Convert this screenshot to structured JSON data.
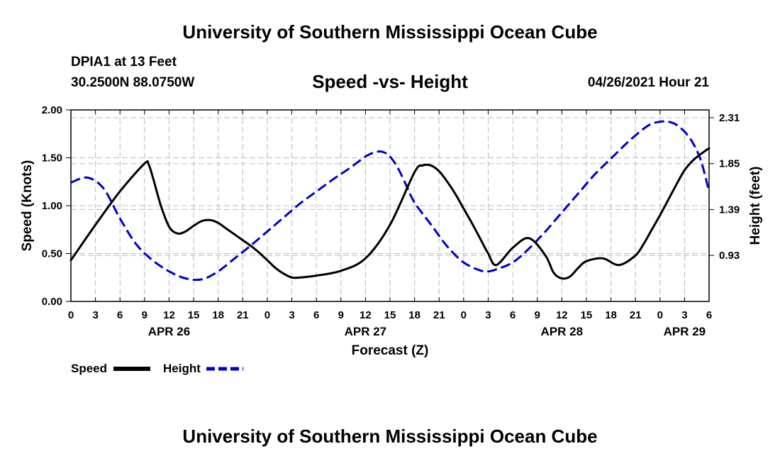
{
  "header": {
    "title": "University of Southern Mississippi Ocean Cube",
    "station": "DPIA1 at 13 Feet",
    "coords": "30.2500N  88.0750W",
    "datetime": "04/26/2021 Hour 21"
  },
  "footer": {
    "title": "University of Southern Mississippi Ocean Cube"
  },
  "chart_data": {
    "type": "line",
    "title": "Speed -vs- Height",
    "xlabel": "Forecast (Z)",
    "ylabel": "Speed (Knots)",
    "y2label": "Height (feet)",
    "x_unit": "hours since APR 26 00Z",
    "xlim": [
      0,
      78
    ],
    "ylim": [
      0,
      2.0
    ],
    "y2lim": [
      0.469,
      2.388
    ],
    "x_ticks": [
      0,
      3,
      6,
      9,
      12,
      15,
      18,
      21,
      24,
      27,
      30,
      33,
      36,
      39,
      42,
      45,
      48,
      51,
      54,
      57,
      60,
      63,
      66,
      69,
      72,
      75,
      78
    ],
    "x_tick_labels": [
      "0",
      "3",
      "6",
      "9",
      "12",
      "15",
      "18",
      "21",
      "0",
      "3",
      "6",
      "9",
      "12",
      "15",
      "18",
      "21",
      "0",
      "3",
      "6",
      "9",
      "12",
      "15",
      "18",
      "21",
      "0",
      "3",
      "6"
    ],
    "date_labels": [
      {
        "x": 12,
        "label": "APR 26"
      },
      {
        "x": 36,
        "label": "APR 27"
      },
      {
        "x": 60,
        "label": "APR 28"
      },
      {
        "x": 75,
        "label": "APR 29"
      }
    ],
    "y_ticks": [
      0.0,
      0.5,
      1.0,
      1.5,
      2.0
    ],
    "y_tick_labels": [
      "0.00",
      "0.50",
      "1.00",
      "1.50",
      "2.00"
    ],
    "y2_ticks": [
      0.93,
      1.39,
      1.85,
      2.31
    ],
    "y2_tick_labels": [
      "0.93",
      "1.39",
      "1.85",
      "2.31"
    ],
    "grid": true,
    "legend_position": "bottom-left",
    "series": [
      {
        "name": "Speed",
        "axis": "left",
        "color": "#000000",
        "dash": "solid",
        "x": [
          0,
          3,
          6,
          9,
          9.5,
          10,
          11,
          12,
          13,
          14,
          15,
          16,
          17,
          18,
          19,
          20,
          21,
          22,
          23,
          24,
          25,
          26,
          27,
          28,
          30,
          33,
          36,
          39,
          42,
          43,
          44,
          45,
          46,
          47,
          48,
          49,
          50,
          51,
          52,
          54,
          56,
          58,
          59,
          60,
          61,
          62,
          63,
          65,
          67,
          69,
          70,
          71,
          72,
          73,
          74,
          75,
          76,
          77,
          78
        ],
        "values": [
          0.43,
          0.8,
          1.15,
          1.44,
          1.43,
          1.3,
          1.0,
          0.78,
          0.71,
          0.73,
          0.79,
          0.84,
          0.85,
          0.82,
          0.76,
          0.7,
          0.64,
          0.58,
          0.51,
          0.43,
          0.35,
          0.29,
          0.25,
          0.25,
          0.27,
          0.32,
          0.45,
          0.8,
          1.35,
          1.42,
          1.42,
          1.36,
          1.25,
          1.12,
          0.97,
          0.82,
          0.66,
          0.5,
          0.38,
          0.56,
          0.66,
          0.48,
          0.3,
          0.24,
          0.26,
          0.35,
          0.42,
          0.45,
          0.38,
          0.48,
          0.6,
          0.75,
          0.9,
          1.06,
          1.22,
          1.37,
          1.47,
          1.54,
          1.6
        ]
      },
      {
        "name": "Height",
        "axis": "right",
        "color": "#0000cc",
        "dash": "dashed",
        "x": [
          0,
          2,
          4,
          6,
          8,
          10,
          12,
          14,
          16,
          18,
          20,
          22,
          24,
          26,
          28,
          30,
          32,
          34,
          36,
          37,
          38,
          39,
          40,
          41,
          42,
          44,
          46,
          48,
          50,
          51,
          52,
          54,
          56,
          58,
          60,
          62,
          64,
          66,
          68,
          70,
          71,
          72,
          73,
          74,
          75,
          76,
          77,
          78
        ],
        "values": [
          1.66,
          1.71,
          1.6,
          1.3,
          1.04,
          0.88,
          0.77,
          0.7,
          0.69,
          0.77,
          0.9,
          1.03,
          1.17,
          1.31,
          1.45,
          1.57,
          1.69,
          1.8,
          1.92,
          1.96,
          1.97,
          1.92,
          1.8,
          1.63,
          1.46,
          1.24,
          1.02,
          0.86,
          0.78,
          0.77,
          0.79,
          0.86,
          1.0,
          1.17,
          1.36,
          1.55,
          1.74,
          1.9,
          2.06,
          2.2,
          2.25,
          2.27,
          2.27,
          2.24,
          2.17,
          2.06,
          1.88,
          1.57
        ]
      }
    ],
    "legend": [
      {
        "name": "Speed",
        "color": "#000000",
        "dash": "solid"
      },
      {
        "name": "Height",
        "color": "#0000cc",
        "dash": "dashed"
      }
    ]
  }
}
